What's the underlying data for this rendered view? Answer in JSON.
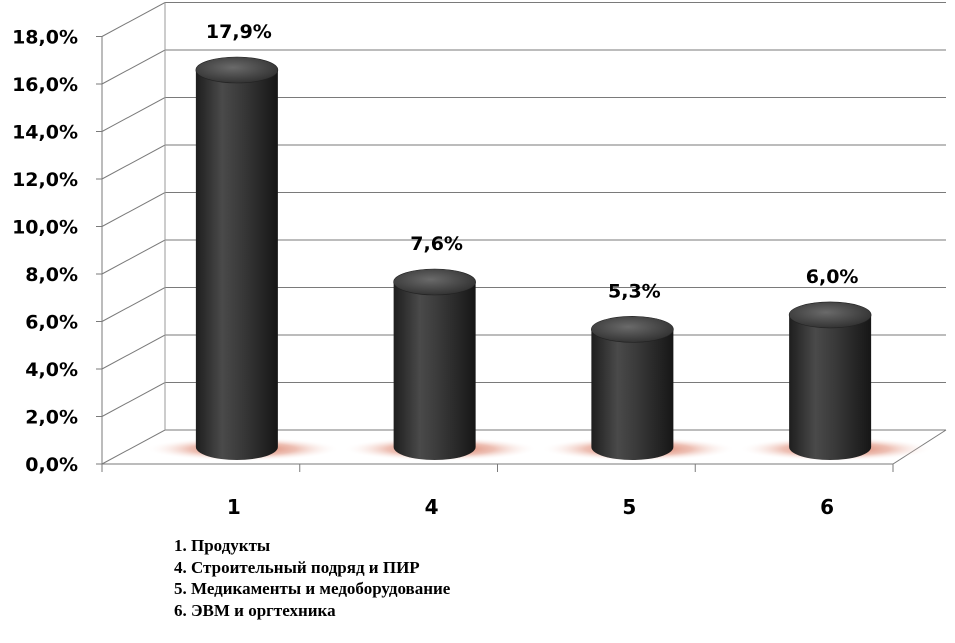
{
  "chart_data": {
    "type": "bar",
    "style": "3d-cylinder",
    "categories": [
      "1",
      "4",
      "5",
      "6"
    ],
    "values": [
      17.9,
      7.6,
      5.3,
      6.0
    ],
    "data_labels": [
      "17,9%",
      "7,6%",
      "5,3%",
      "6,0%"
    ],
    "y_ticks": [
      "0,0%",
      "2,0%",
      "4,0%",
      "6,0%",
      "8,0%",
      "10,0%",
      "12,0%",
      "14,0%",
      "16,0%",
      "18,0%"
    ],
    "ylim": [
      0,
      18
    ],
    "grid": true,
    "bar_color": "#3a3a3a",
    "legend": [
      "1. Продукты",
      "4. Строительный подряд и ПИР",
      "5. Медикаменты и медоборудование",
      "6. ЭВМ и оргтехника"
    ]
  }
}
